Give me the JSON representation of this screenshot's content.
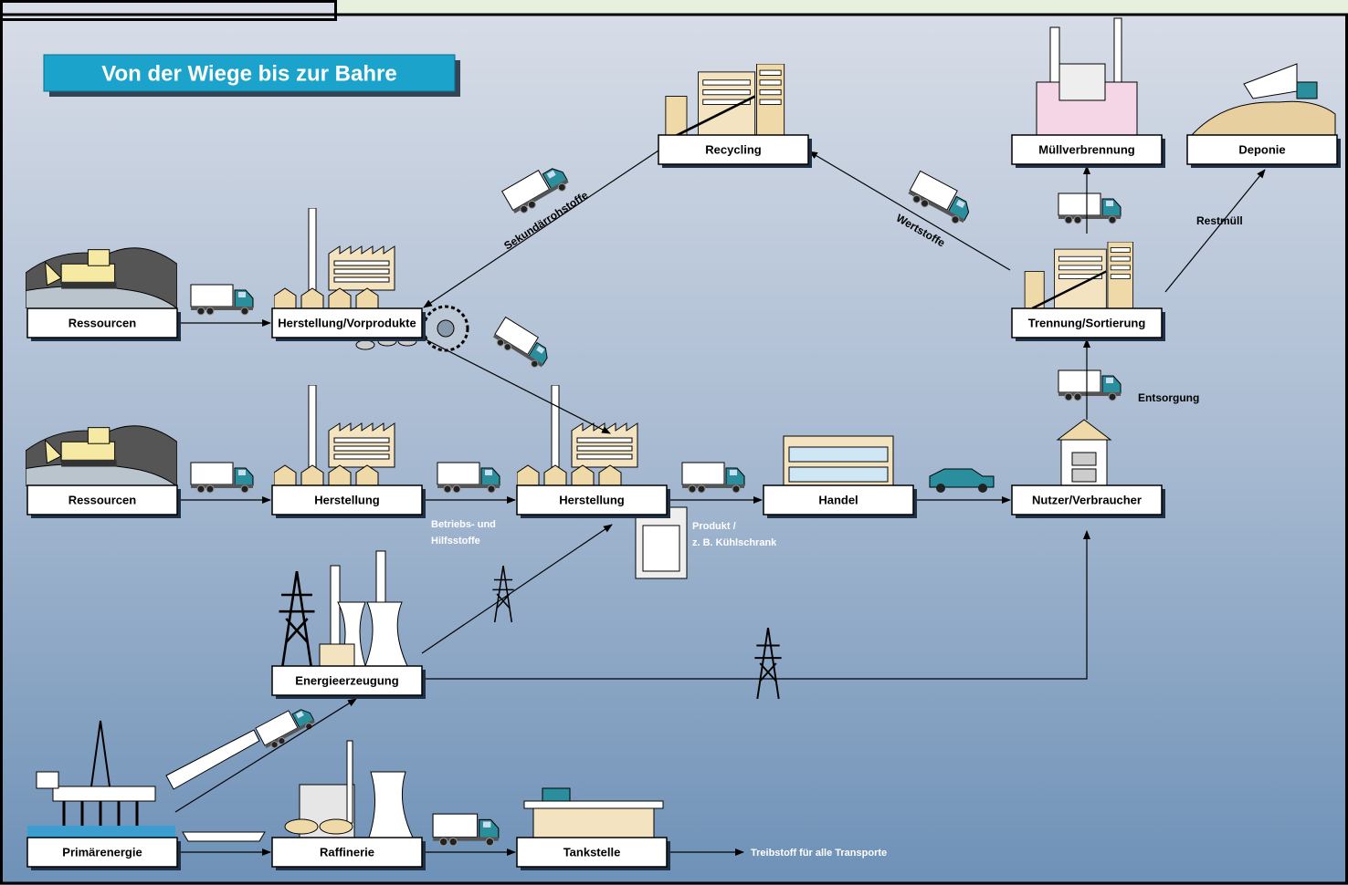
{
  "title": "Von der Wiege bis zur Bahre",
  "nodes": [
    {
      "label": "Recycling"
    },
    {
      "label": "Müllverbrennung"
    },
    {
      "label": "Deponie"
    },
    {
      "label": "Ressourcen"
    },
    {
      "label": "Herstellung/Vorprodukte"
    },
    {
      "label": "Trennung/Sortierung"
    },
    {
      "label": "Ressourcen"
    },
    {
      "label": "Herstellung"
    },
    {
      "label": "Herstellung"
    },
    {
      "label": "Handel"
    },
    {
      "label": "Nutzer/Verbraucher"
    },
    {
      "label": "Energieerzeugung"
    },
    {
      "label": "Primärenergie"
    },
    {
      "label": "Raffinerie"
    },
    {
      "label": "Tankstelle"
    }
  ],
  "labels": [
    {
      "lines": [
        "Sekundärrohstoffe"
      ]
    },
    {
      "lines": [
        "Wertstoffe"
      ]
    },
    {
      "lines": [
        "Restmüll"
      ]
    },
    {
      "lines": [
        "Entsorgung"
      ]
    },
    {
      "lines": [
        "Betriebs- und",
        "Hilfsstoffe"
      ]
    },
    {
      "lines": [
        "Produkt /",
        "z. B. Kühlschrank"
      ]
    },
    {
      "lines": [
        "Treibstoff für alle Transporte"
      ]
    }
  ]
}
